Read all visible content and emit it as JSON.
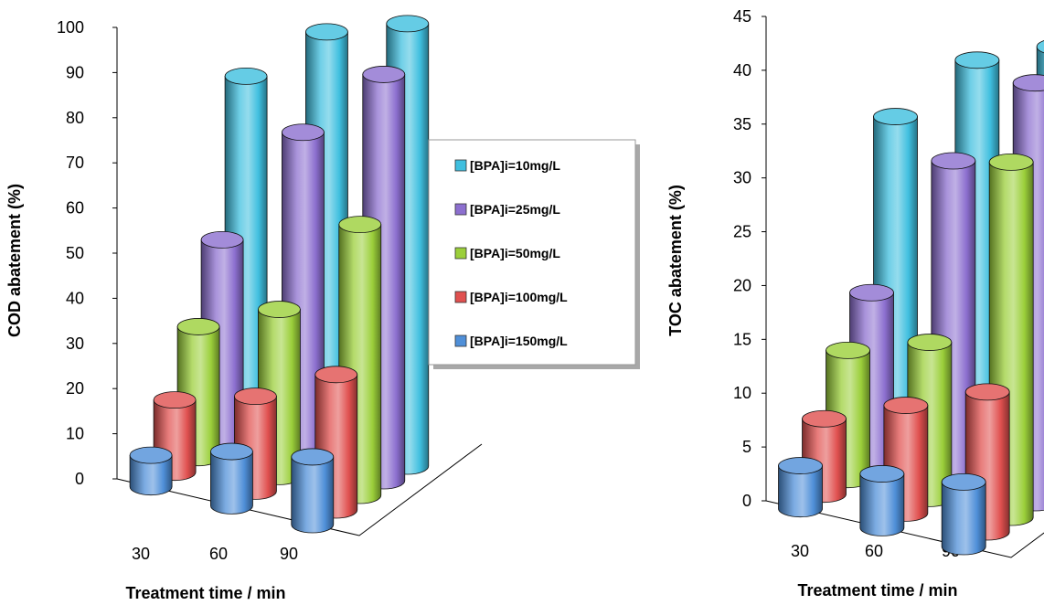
{
  "chart_data": [
    {
      "type": "bar",
      "style": "3d-cylinder",
      "title": "",
      "xlabel": "Treatment time / min",
      "ylabel": "COD abatement (%)",
      "categories": [
        "30",
        "60",
        "90"
      ],
      "ylim": [
        0,
        100
      ],
      "yticks": [
        "0",
        "10",
        "20",
        "30",
        "40",
        "50",
        "60",
        "70",
        "80",
        "90",
        "100"
      ],
      "series": [
        {
          "name": "[BPA]i=150mg/L",
          "color": "#4f8fd8",
          "values": [
            7,
            12,
            15
          ]
        },
        {
          "name": "[BPA]i=100mg/L",
          "color": "#e0504f",
          "values": [
            16,
            21,
            30
          ]
        },
        {
          "name": "[BPA]i=50mg/L",
          "color": "#9bcf3a",
          "values": [
            29,
            37,
            60
          ]
        },
        {
          "name": "[BPA]i=25mg/L",
          "color": "#8c6fcf",
          "values": [
            45,
            73,
            90
          ]
        },
        {
          "name": "[BPA]i=10mg/L",
          "color": "#3fbfdf",
          "values": [
            78,
            92,
            98
          ]
        }
      ]
    },
    {
      "type": "bar",
      "style": "3d-cylinder",
      "title": "",
      "xlabel": "Treatment time / min",
      "ylabel": "TOC abatement (%)",
      "categories": [
        "30",
        "60",
        "90"
      ],
      "ylim": [
        0,
        45
      ],
      "yticks": [
        "0",
        "5",
        "10",
        "15",
        "20",
        "25",
        "30",
        "35",
        "40",
        "45"
      ],
      "series": [
        {
          "name": "[BPA]i=150mg/L",
          "color": "#4f8fd8",
          "values": [
            4,
            5,
            6
          ]
        },
        {
          "name": "[BPA]i=100mg/L",
          "color": "#e0504f",
          "values": [
            7,
            10,
            13
          ]
        },
        {
          "name": "[BPA]i=50mg/L",
          "color": "#9bcf3a",
          "values": [
            12,
            14.5,
            33
          ]
        },
        {
          "name": "[BPA]i=25mg/L",
          "color": "#8c6fcf",
          "values": [
            16,
            30,
            39
          ]
        },
        {
          "name": "[BPA]i=10mg/L",
          "color": "#3fbfdf",
          "values": [
            31,
            38,
            41
          ]
        }
      ]
    }
  ],
  "legend": {
    "placement": "center",
    "items": [
      {
        "label": "[BPA]i=10mg/L",
        "color": "#3fbfdf"
      },
      {
        "label": "[BPA]i=25mg/L",
        "color": "#8c6fcf"
      },
      {
        "label": "[BPA]i=50mg/L",
        "color": "#9bcf3a"
      },
      {
        "label": "[BPA]i=100mg/L",
        "color": "#e0504f"
      },
      {
        "label": "[BPA]i=150mg/L",
        "color": "#4f8fd8"
      }
    ]
  }
}
